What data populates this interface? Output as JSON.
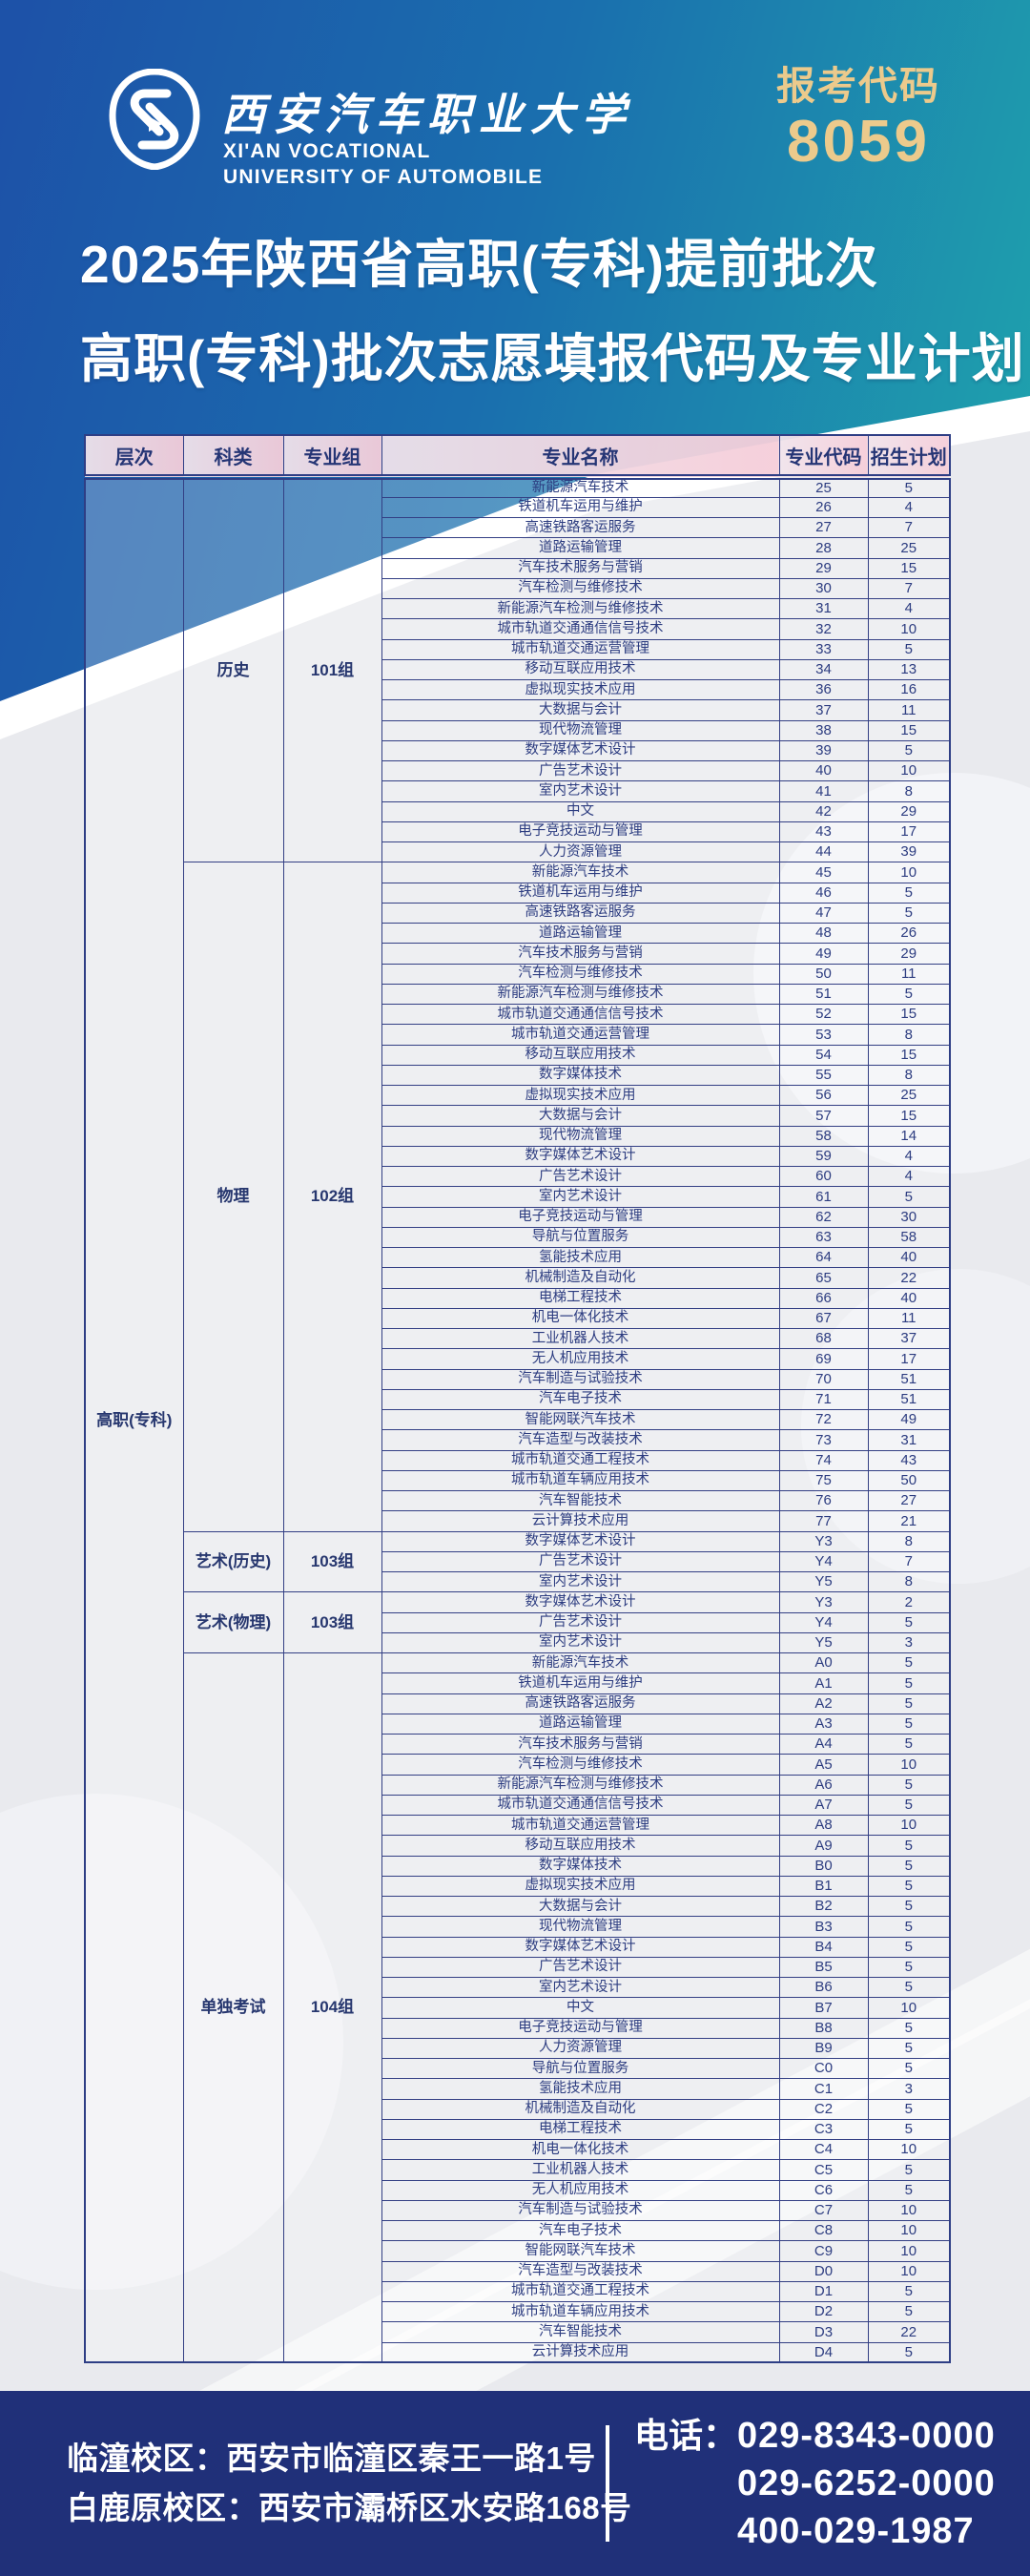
{
  "banner": {
    "university_cn": "西安汽车职业大学",
    "university_en_line1": "XI'AN VOCATIONAL",
    "university_en_line2": "UNIVERSITY OF AUTOMOBILE",
    "badge_label": "报考代码",
    "badge_code": "8059"
  },
  "title": {
    "line1": "2025年陕西省高职(专科)提前批次",
    "line2": "高职(专科)批次志愿填报代码及专业计划"
  },
  "table": {
    "columns": [
      "层次",
      "科类",
      "专业组",
      "专业名称",
      "专业代码",
      "招生计划"
    ],
    "level": "高职(专科)",
    "groups": [
      {
        "category": "历史",
        "group": "101组",
        "rows": [
          [
            "新能源汽车技术",
            "25",
            "5"
          ],
          [
            "铁道机车运用与维护",
            "26",
            "4"
          ],
          [
            "高速铁路客运服务",
            "27",
            "7"
          ],
          [
            "道路运输管理",
            "28",
            "25"
          ],
          [
            "汽车技术服务与营销",
            "29",
            "15"
          ],
          [
            "汽车检测与维修技术",
            "30",
            "7"
          ],
          [
            "新能源汽车检测与维修技术",
            "31",
            "4"
          ],
          [
            "城市轨道交通通信信号技术",
            "32",
            "10"
          ],
          [
            "城市轨道交通运营管理",
            "33",
            "5"
          ],
          [
            "移动互联应用技术",
            "34",
            "13"
          ],
          [
            "虚拟现实技术应用",
            "36",
            "16"
          ],
          [
            "大数据与会计",
            "37",
            "11"
          ],
          [
            "现代物流管理",
            "38",
            "15"
          ],
          [
            "数字媒体艺术设计",
            "39",
            "5"
          ],
          [
            "广告艺术设计",
            "40",
            "10"
          ],
          [
            "室内艺术设计",
            "41",
            "8"
          ],
          [
            "中文",
            "42",
            "29"
          ],
          [
            "电子竞技运动与管理",
            "43",
            "17"
          ],
          [
            "人力资源管理",
            "44",
            "39"
          ]
        ]
      },
      {
        "category": "物理",
        "group": "102组",
        "rows": [
          [
            "新能源汽车技术",
            "45",
            "10"
          ],
          [
            "铁道机车运用与维护",
            "46",
            "5"
          ],
          [
            "高速铁路客运服务",
            "47",
            "5"
          ],
          [
            "道路运输管理",
            "48",
            "26"
          ],
          [
            "汽车技术服务与营销",
            "49",
            "29"
          ],
          [
            "汽车检测与维修技术",
            "50",
            "11"
          ],
          [
            "新能源汽车检测与维修技术",
            "51",
            "5"
          ],
          [
            "城市轨道交通通信信号技术",
            "52",
            "15"
          ],
          [
            "城市轨道交通运营管理",
            "53",
            "8"
          ],
          [
            "移动互联应用技术",
            "54",
            "15"
          ],
          [
            "数字媒体技术",
            "55",
            "8"
          ],
          [
            "虚拟现实技术应用",
            "56",
            "25"
          ],
          [
            "大数据与会计",
            "57",
            "15"
          ],
          [
            "现代物流管理",
            "58",
            "14"
          ],
          [
            "数字媒体艺术设计",
            "59",
            "4"
          ],
          [
            "广告艺术设计",
            "60",
            "4"
          ],
          [
            "室内艺术设计",
            "61",
            "5"
          ],
          [
            "电子竞技运动与管理",
            "62",
            "30"
          ],
          [
            "导航与位置服务",
            "63",
            "58"
          ],
          [
            "氢能技术应用",
            "64",
            "40"
          ],
          [
            "机械制造及自动化",
            "65",
            "22"
          ],
          [
            "电梯工程技术",
            "66",
            "40"
          ],
          [
            "机电一体化技术",
            "67",
            "11"
          ],
          [
            "工业机器人技术",
            "68",
            "37"
          ],
          [
            "无人机应用技术",
            "69",
            "17"
          ],
          [
            "汽车制造与试验技术",
            "70",
            "51"
          ],
          [
            "汽车电子技术",
            "71",
            "51"
          ],
          [
            "智能网联汽车技术",
            "72",
            "49"
          ],
          [
            "汽车造型与改装技术",
            "73",
            "31"
          ],
          [
            "城市轨道交通工程技术",
            "74",
            "43"
          ],
          [
            "城市轨道车辆应用技术",
            "75",
            "50"
          ],
          [
            "汽车智能技术",
            "76",
            "27"
          ],
          [
            "云计算技术应用",
            "77",
            "21"
          ]
        ]
      },
      {
        "category": "艺术(历史)",
        "group": "103组",
        "rows": [
          [
            "数字媒体艺术设计",
            "Y3",
            "8"
          ],
          [
            "广告艺术设计",
            "Y4",
            "7"
          ],
          [
            "室内艺术设计",
            "Y5",
            "8"
          ]
        ]
      },
      {
        "category": "艺术(物理)",
        "group": "103组",
        "rows": [
          [
            "数字媒体艺术设计",
            "Y3",
            "2"
          ],
          [
            "广告艺术设计",
            "Y4",
            "5"
          ],
          [
            "室内艺术设计",
            "Y5",
            "3"
          ]
        ]
      },
      {
        "category": "单独考试",
        "group": "104组",
        "rows": [
          [
            "新能源汽车技术",
            "A0",
            "5"
          ],
          [
            "铁道机车运用与维护",
            "A1",
            "5"
          ],
          [
            "高速铁路客运服务",
            "A2",
            "5"
          ],
          [
            "道路运输管理",
            "A3",
            "5"
          ],
          [
            "汽车技术服务与营销",
            "A4",
            "5"
          ],
          [
            "汽车检测与维修技术",
            "A5",
            "10"
          ],
          [
            "新能源汽车检测与维修技术",
            "A6",
            "5"
          ],
          [
            "城市轨道交通通信信号技术",
            "A7",
            "5"
          ],
          [
            "城市轨道交通运营管理",
            "A8",
            "10"
          ],
          [
            "移动互联应用技术",
            "A9",
            "5"
          ],
          [
            "数字媒体技术",
            "B0",
            "5"
          ],
          [
            "虚拟现实技术应用",
            "B1",
            "5"
          ],
          [
            "大数据与会计",
            "B2",
            "5"
          ],
          [
            "现代物流管理",
            "B3",
            "5"
          ],
          [
            "数字媒体艺术设计",
            "B4",
            "5"
          ],
          [
            "广告艺术设计",
            "B5",
            "5"
          ],
          [
            "室内艺术设计",
            "B6",
            "5"
          ],
          [
            "中文",
            "B7",
            "10"
          ],
          [
            "电子竞技运动与管理",
            "B8",
            "5"
          ],
          [
            "人力资源管理",
            "B9",
            "5"
          ],
          [
            "导航与位置服务",
            "C0",
            "5"
          ],
          [
            "氢能技术应用",
            "C1",
            "3"
          ],
          [
            "机械制造及自动化",
            "C2",
            "5"
          ],
          [
            "电梯工程技术",
            "C3",
            "5"
          ],
          [
            "机电一体化技术",
            "C4",
            "10"
          ],
          [
            "工业机器人技术",
            "C5",
            "5"
          ],
          [
            "无人机应用技术",
            "C6",
            "5"
          ],
          [
            "汽车制造与试验技术",
            "C7",
            "10"
          ],
          [
            "汽车电子技术",
            "C8",
            "10"
          ],
          [
            "智能网联汽车技术",
            "C9",
            "10"
          ],
          [
            "汽车造型与改装技术",
            "D0",
            "10"
          ],
          [
            "城市轨道交通工程技术",
            "D1",
            "5"
          ],
          [
            "城市轨道车辆应用技术",
            "D2",
            "5"
          ],
          [
            "汽车智能技术",
            "D3",
            "22"
          ],
          [
            "云计算技术应用",
            "D4",
            "5"
          ]
        ]
      }
    ]
  },
  "footer": {
    "campus1": "临潼校区：西安市临潼区秦王一路1号",
    "campus2": "白鹿原校区：西安市灞桥区水安路168号",
    "phone_label": "电话：",
    "phone_numbers": [
      "029-8343-0000",
      "029-6252-0000",
      "400-029-1987"
    ]
  },
  "colors": {
    "banner_blue": "#1d52a8",
    "banner_teal": "#1fa2ad",
    "badge_gold": "#ecca8c",
    "header_pink": "#f5cdd9",
    "table_navy": "#2e3e85",
    "footer_navy": "#203079",
    "base_gray": "#e9eaee"
  }
}
